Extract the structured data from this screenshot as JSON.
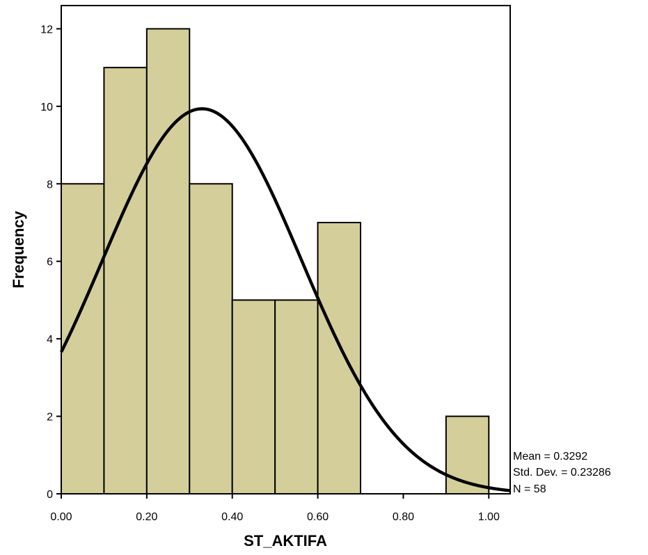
{
  "chart_data": {
    "type": "bar",
    "subtype": "histogram",
    "xlabel": "ST_AKTIFA",
    "ylabel": "Frequency",
    "xlim": [
      0.0,
      1.05
    ],
    "ylim": [
      0,
      12.6
    ],
    "x_ticks": [
      "0.00",
      "0.20",
      "0.40",
      "0.60",
      "0.80",
      "1.00"
    ],
    "x_tick_values": [
      0.0,
      0.2,
      0.4,
      0.6,
      0.8,
      1.0
    ],
    "y_ticks": [
      0,
      2,
      4,
      6,
      8,
      10,
      12
    ],
    "bins": [
      {
        "start": 0.0,
        "end": 0.1,
        "count": 8
      },
      {
        "start": 0.1,
        "end": 0.2,
        "count": 11
      },
      {
        "start": 0.2,
        "end": 0.3,
        "count": 12
      },
      {
        "start": 0.3,
        "end": 0.4,
        "count": 8
      },
      {
        "start": 0.4,
        "end": 0.5,
        "count": 5
      },
      {
        "start": 0.5,
        "end": 0.6,
        "count": 5
      },
      {
        "start": 0.6,
        "end": 0.7,
        "count": 7
      },
      {
        "start": 0.7,
        "end": 0.8,
        "count": 0
      },
      {
        "start": 0.8,
        "end": 0.9,
        "count": 0
      },
      {
        "start": 0.9,
        "end": 1.0,
        "count": 2
      }
    ],
    "normal_curve": {
      "mean": 0.3292,
      "std_dev": 0.23286,
      "n": 58,
      "bin_width": 0.1
    },
    "stats": [
      "Mean = 0.3292",
      "Std. Dev. = 0.23286",
      "N = 58"
    ],
    "bar_color": "#d4cf9a",
    "edge_color": "#000000",
    "curve_color": "#000000",
    "grid": false
  }
}
